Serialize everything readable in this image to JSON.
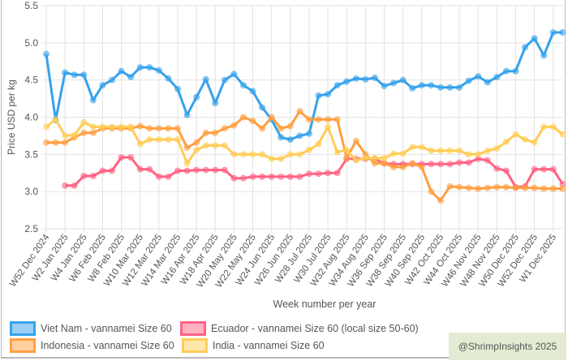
{
  "chart_data": {
    "type": "line",
    "ylabel": "Price USD per kg",
    "xlabel": "Week number per year",
    "ylim": [
      2.5,
      5.5
    ],
    "y_ticks": [
      "2.5",
      "3.0",
      "3.5",
      "4.0",
      "4.5",
      "5.0",
      "5.5"
    ],
    "grid": true,
    "legend_position": "bottom-left",
    "x_tick_labels": [
      "W52 Dec 2024",
      "W2 Jan 2025",
      "W4 Jan 2025",
      "W6 Feb 2025",
      "W8 Feb 2025",
      "W10 Mar 2025",
      "W12 Mar 2025",
      "W14 Mar 2025",
      "W16 Apr 2025",
      "W18 Apr 2025",
      "W20 May 2025",
      "W22 May 2025",
      "W24 Jun 2025",
      "W26 Jun 2025",
      "W28 Jul 2025",
      "W30 Jul 2025",
      "W32 Aug 2025",
      "W34 Aug 2025",
      "W36 Sep 2025",
      "W38 Sep 2025",
      "W40 Sep 2025",
      "W42 Oct 2025",
      "W44 Oct 2025",
      "W46 Nov 2025",
      "W48 Nov 2025",
      "W50 Dec 2025",
      "W52 Dec 2025",
      "W1 Dec 2025"
    ],
    "series": [
      {
        "name": "Viet Nam - vannamei Size 60",
        "color": "#36a2eb",
        "values": [
          4.85,
          3.96,
          4.6,
          4.57,
          4.57,
          4.23,
          4.43,
          4.5,
          4.62,
          4.54,
          4.67,
          4.67,
          4.63,
          4.52,
          4.38,
          4.03,
          4.27,
          4.51,
          4.19,
          4.5,
          4.58,
          4.43,
          4.35,
          4.13,
          3.97,
          3.73,
          3.7,
          3.75,
          3.78,
          4.29,
          4.31,
          4.43,
          4.48,
          4.52,
          4.51,
          4.53,
          4.42,
          4.46,
          4.5,
          4.39,
          4.43,
          4.43,
          4.4,
          4.4,
          4.4,
          4.49,
          4.55,
          4.47,
          4.54,
          4.62,
          4.62,
          4.94,
          5.06,
          4.83,
          5.14,
          5.14
        ]
      },
      {
        "name": "Ecuador - vannamei Size 60 (local size 50-60)",
        "color": "#ff6384",
        "values": [
          null,
          null,
          3.08,
          3.08,
          3.21,
          3.21,
          3.28,
          3.28,
          3.46,
          3.46,
          3.3,
          3.3,
          3.2,
          3.2,
          3.28,
          3.28,
          3.29,
          3.29,
          3.29,
          3.29,
          3.18,
          3.18,
          3.2,
          3.2,
          3.2,
          3.2,
          3.2,
          3.2,
          3.24,
          3.24,
          3.25,
          3.25,
          3.44,
          3.44,
          3.44,
          3.44,
          3.38,
          3.37,
          3.37,
          3.37,
          3.37,
          3.37,
          3.37,
          3.37,
          3.39,
          3.39,
          3.44,
          3.42,
          3.31,
          3.28,
          3.06,
          3.07,
          3.3,
          3.3,
          3.3,
          3.1
        ]
      },
      {
        "name": "Indonesia - vannamei Size 60",
        "color": "#ff9f40",
        "values": [
          3.66,
          3.66,
          3.66,
          3.73,
          3.79,
          3.79,
          3.85,
          3.85,
          3.85,
          3.85,
          3.88,
          3.85,
          3.85,
          3.85,
          3.85,
          3.59,
          3.66,
          3.79,
          3.79,
          3.85,
          3.89,
          4.0,
          3.95,
          3.85,
          4.0,
          3.85,
          3.88,
          4.08,
          3.97,
          3.97,
          3.97,
          3.97,
          3.45,
          3.68,
          3.5,
          3.38,
          3.38,
          3.33,
          3.33,
          3.38,
          3.33,
          3.0,
          2.88,
          3.07,
          3.06,
          3.05,
          3.04,
          3.05,
          3.06,
          3.06,
          3.05,
          3.05,
          3.05,
          3.04,
          3.04,
          3.04
        ]
      },
      {
        "name": "India - vannamei Size 60",
        "color": "#ffcd56",
        "values": [
          3.87,
          3.97,
          3.75,
          3.76,
          3.93,
          3.87,
          3.87,
          3.87,
          3.87,
          3.87,
          3.64,
          3.7,
          3.7,
          3.7,
          3.7,
          3.38,
          3.56,
          3.62,
          3.62,
          3.62,
          3.5,
          3.5,
          3.5,
          3.5,
          3.44,
          3.44,
          3.5,
          3.5,
          3.56,
          3.64,
          3.87,
          3.53,
          3.56,
          3.42,
          3.45,
          3.45,
          3.45,
          3.51,
          3.51,
          3.6,
          3.6,
          3.55,
          3.55,
          3.55,
          3.55,
          3.5,
          3.5,
          3.55,
          3.58,
          3.67,
          3.77,
          3.7,
          3.66,
          3.87,
          3.87,
          3.77
        ]
      }
    ]
  },
  "watermark": "@ShrimpInsights 2025"
}
